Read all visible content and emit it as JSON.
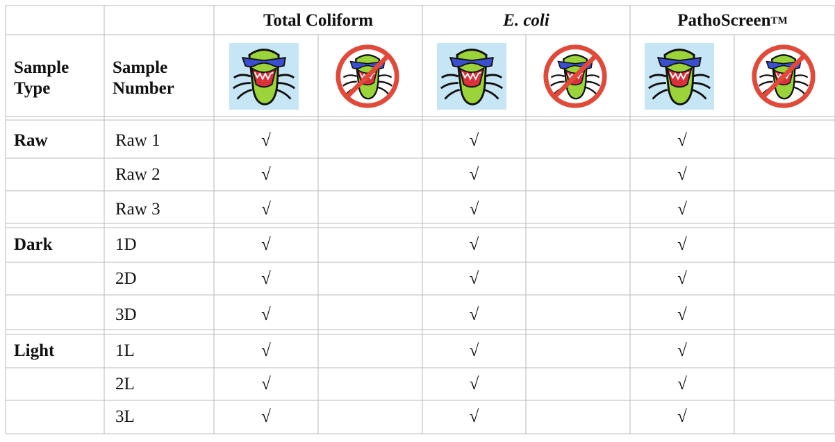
{
  "table": {
    "header": {
      "corner": [
        "Sample Type",
        "Sample Number"
      ],
      "groups": [
        {
          "name": "Total Coliform"
        },
        {
          "name": "E. coli"
        },
        {
          "name": "PathoScreen",
          "superscript": "TM"
        }
      ]
    },
    "rows": [
      {
        "type": "Raw",
        "number": "Raw 1",
        "checks": [
          "√",
          "√",
          "√"
        ]
      },
      {
        "number": "Raw 2",
        "checks": [
          "√",
          "√",
          "√"
        ]
      },
      {
        "number": "Raw 3",
        "checks": [
          "√",
          "√",
          "√"
        ]
      },
      {
        "type": "Dark",
        "number": "1D",
        "checks": [
          "√",
          "√",
          "√"
        ]
      },
      {
        "number": "2D",
        "checks": [
          "√",
          "√",
          "√"
        ]
      },
      {
        "number": "3D",
        "checks": [
          "√",
          "√",
          "√"
        ]
      },
      {
        "type": "Light",
        "number": "1L",
        "checks": [
          "√",
          "√",
          "√"
        ]
      },
      {
        "number": "2L",
        "checks": [
          "√",
          "√",
          "√"
        ]
      },
      {
        "number": "3L",
        "checks": [
          "√",
          "√",
          "√"
        ]
      }
    ]
  }
}
